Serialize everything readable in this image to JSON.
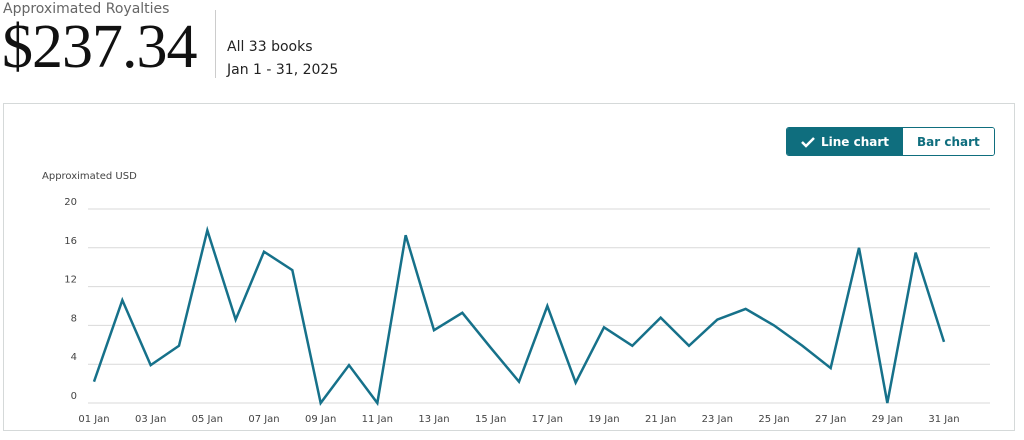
{
  "header": {
    "label": "Approximated Royalties",
    "amount": "$237.34",
    "scope": "All 33 books",
    "period": "Jan 1 - 31, 2025"
  },
  "toggle": {
    "options": [
      "Line chart",
      "Bar chart"
    ],
    "selected": 0
  },
  "chart_data": {
    "type": "line",
    "y_label": "Approximated USD",
    "categories": [
      "01 Jan",
      null,
      "03 Jan",
      null,
      "05 Jan",
      null,
      "07 Jan",
      null,
      "09 Jan",
      null,
      "11 Jan",
      null,
      "13 Jan",
      null,
      "15 Jan",
      null,
      "17 Jan",
      null,
      "19 Jan",
      null,
      "21 Jan",
      null,
      "23 Jan",
      null,
      "25 Jan",
      null,
      "27 Jan",
      null,
      "29 Jan",
      null,
      "31 Jan"
    ],
    "values": [
      2.2,
      10.6,
      3.9,
      5.9,
      17.8,
      8.6,
      15.6,
      13.7,
      0,
      3.9,
      0,
      17.3,
      7.5,
      9.3,
      5.7,
      2.2,
      10,
      2.1,
      7.8,
      5.9,
      8.8,
      5.9,
      8.6,
      9.7,
      8,
      5.9,
      3.6,
      16,
      0,
      15.5,
      6.3
    ],
    "color": "#16718a",
    "ylim": [
      0,
      20
    ],
    "yticks": [
      0,
      4,
      8,
      12,
      16,
      20
    ],
    "grid": true
  }
}
